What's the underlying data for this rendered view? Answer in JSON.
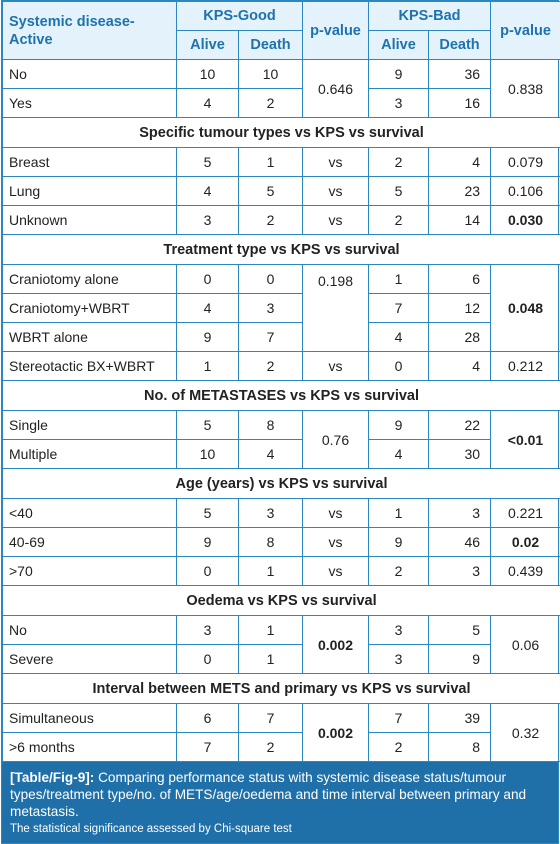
{
  "header": {
    "row_label": "Systemic disease-\nActive",
    "kps_good": "KPS-Good",
    "kps_bad": "KPS-Bad",
    "alive": "Alive",
    "death": "Death",
    "pvalue": "p-value"
  },
  "sections": {
    "tumour": "Specific tumour types vs KPS vs survival",
    "treatment": "Treatment type vs KPS vs survival",
    "mets": "No. of METASTASES vs KPS vs survival",
    "age": "Age (years) vs KPS vs survival",
    "oedema": "Oedema vs KPS vs survival",
    "interval": "Interval between METS and primary vs KPS vs survival"
  },
  "rows": {
    "sys_no": {
      "label": "No",
      "ga": "10",
      "gd": "10",
      "ba": "9",
      "bd": "36"
    },
    "sys_yes": {
      "label": "Yes",
      "ga": "4",
      "gd": "2",
      "ba": "3",
      "bd": "16"
    },
    "sys_p": {
      "good": "0.646",
      "bad": "0.838"
    },
    "breast": {
      "label": "Breast",
      "ga": "5",
      "gd": "1",
      "gp": "vs",
      "ba": "2",
      "bd": "4",
      "bp": "0.079"
    },
    "lung": {
      "label": "Lung",
      "ga": "4",
      "gd": "5",
      "gp": "vs",
      "ba": "5",
      "bd": "23",
      "bp": "0.106"
    },
    "unknown": {
      "label": "Unknown",
      "ga": "3",
      "gd": "2",
      "gp": "vs",
      "ba": "2",
      "bd": "14",
      "bp": "0.030"
    },
    "crani": {
      "label": "Craniotomy alone",
      "ga": "0",
      "gd": "0",
      "ba": "1",
      "bd": "6"
    },
    "crani_wbrt": {
      "label": "Craniotomy+WBRT",
      "ga": "4",
      "gd": "3",
      "ba": "7",
      "bd": "12"
    },
    "wbrt": {
      "label": "WBRT alone",
      "ga": "9",
      "gd": "7",
      "ba": "4",
      "bd": "28"
    },
    "treat_p": {
      "good": "0.198",
      "bad": "0.048"
    },
    "stereo": {
      "label": "Stereotactic BX+WBRT",
      "ga": "1",
      "gd": "2",
      "gp": "vs",
      "ba": "0",
      "bd": "4",
      "bp": "0.212"
    },
    "single": {
      "label": "Single",
      "ga": "5",
      "gd": "8",
      "ba": "9",
      "bd": "22"
    },
    "multiple": {
      "label": "Multiple",
      "ga": "10",
      "gd": "4",
      "ba": "4",
      "bd": "30"
    },
    "mets_p": {
      "good": "0.76",
      "bad": "<0.01"
    },
    "age40": {
      "label": "<40",
      "ga": "5",
      "gd": "3",
      "gp": "vs",
      "ba": "1",
      "bd": "3",
      "bp": "0.221"
    },
    "age4069": {
      "label": "40-69",
      "ga": "9",
      "gd": "8",
      "gp": "vs",
      "ba": "9",
      "bd": "46",
      "bp": "0.02"
    },
    "age70": {
      "label": ">70",
      "ga": "0",
      "gd": "1",
      "gp": "vs",
      "ba": "2",
      "bd": "3",
      "bp": "0.439"
    },
    "oed_no": {
      "label": "No",
      "ga": "3",
      "gd": "1",
      "ba": "3",
      "bd": "5"
    },
    "oed_severe": {
      "label": "Severe",
      "ga": "0",
      "gd": "1",
      "ba": "3",
      "bd": "9"
    },
    "oed_p": {
      "good": "0.002",
      "bad": "0.06"
    },
    "simul": {
      "label": "Simultaneous",
      "ga": "6",
      "gd": "7",
      "ba": "7",
      "bd": "39"
    },
    "sixmo": {
      "label": ">6 months",
      "ga": "7",
      "gd": "2",
      "ba": "2",
      "bd": "8"
    },
    "int_p": {
      "good": "0.002",
      "bad": "0.32"
    }
  },
  "caption": {
    "label": "[Table/Fig-9]:",
    "text": " Comparing performance status with systemic disease status/tumour types/treatment type/no. of METS/age/oedema and time interval between primary and metastasis.",
    "note": "The statistical significance assessed by Chi-square test"
  },
  "colors": {
    "border": "#2c86bf",
    "header_bg": "#e3f2fb",
    "header_text": "#1e73ad",
    "caption_bg": "#1f6fa8"
  }
}
